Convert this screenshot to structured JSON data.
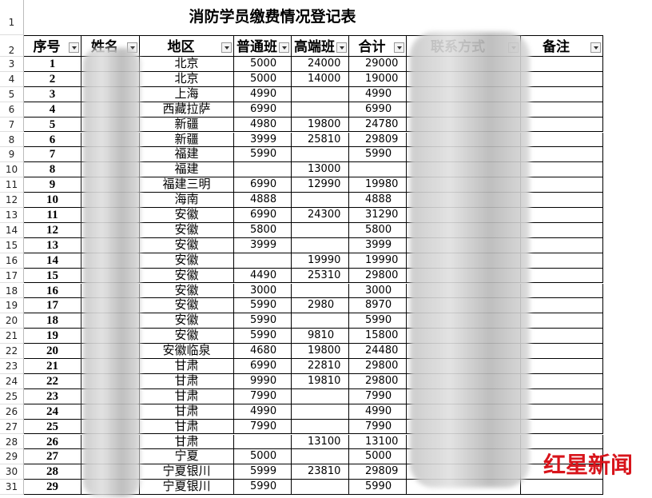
{
  "sheet": {
    "title": "消防学员缴费情况登记表",
    "row_numbers": [
      1,
      2,
      3,
      4,
      5,
      6,
      7,
      8,
      9,
      10,
      11,
      12,
      13,
      14,
      15,
      16,
      17,
      18,
      19,
      20,
      21,
      22,
      23,
      24,
      25,
      26,
      27,
      28,
      29,
      30,
      31
    ],
    "headers": [
      "序号",
      "姓名",
      "地区",
      "普通班",
      "高端班",
      "合计",
      "联系方式",
      "备注"
    ],
    "rows": [
      [
        1,
        "北京",
        5000,
        24000,
        29000
      ],
      [
        2,
        "北京",
        5000,
        14000,
        19000
      ],
      [
        3,
        "上海",
        4990,
        null,
        4990
      ],
      [
        4,
        "西藏拉萨",
        6990,
        null,
        6990
      ],
      [
        5,
        "新疆",
        4980,
        19800,
        24780
      ],
      [
        6,
        "新疆",
        3999,
        25810,
        29809
      ],
      [
        7,
        "福建",
        5990,
        null,
        5990
      ],
      [
        8,
        "福建",
        null,
        13000,
        null
      ],
      [
        9,
        "福建三明",
        6990,
        12990,
        19980
      ],
      [
        10,
        "海南",
        4888,
        null,
        4888
      ],
      [
        11,
        "安徽",
        6990,
        24300,
        31290
      ],
      [
        12,
        "安徽",
        5800,
        null,
        5800
      ],
      [
        13,
        "安徽",
        3999,
        null,
        3999
      ],
      [
        14,
        "安徽",
        null,
        19990,
        19990
      ],
      [
        15,
        "安徽",
        4490,
        25310,
        29800
      ],
      [
        16,
        "安徽",
        3000,
        null,
        3000
      ],
      [
        17,
        "安徽",
        5990,
        2980,
        8970
      ],
      [
        18,
        "安徽",
        5990,
        null,
        5990
      ],
      [
        19,
        "安徽",
        5990,
        9810,
        15800
      ],
      [
        20,
        "安徽临泉",
        4680,
        19800,
        24480
      ],
      [
        21,
        "甘肃",
        6990,
        22810,
        29800
      ],
      [
        22,
        "甘肃",
        9990,
        19810,
        29800
      ],
      [
        23,
        "甘肃",
        7990,
        null,
        7990
      ],
      [
        24,
        "甘肃",
        4990,
        null,
        4990
      ],
      [
        25,
        "甘肃",
        7990,
        null,
        7990
      ],
      [
        26,
        "甘肃",
        null,
        13100,
        13100
      ],
      [
        27,
        "宁夏",
        5000,
        null,
        5000
      ],
      [
        28,
        "宁夏银川",
        5999,
        23810,
        29809
      ],
      [
        29,
        "宁夏银川",
        5990,
        null,
        5990
      ]
    ]
  },
  "watermark": "红星新闻"
}
